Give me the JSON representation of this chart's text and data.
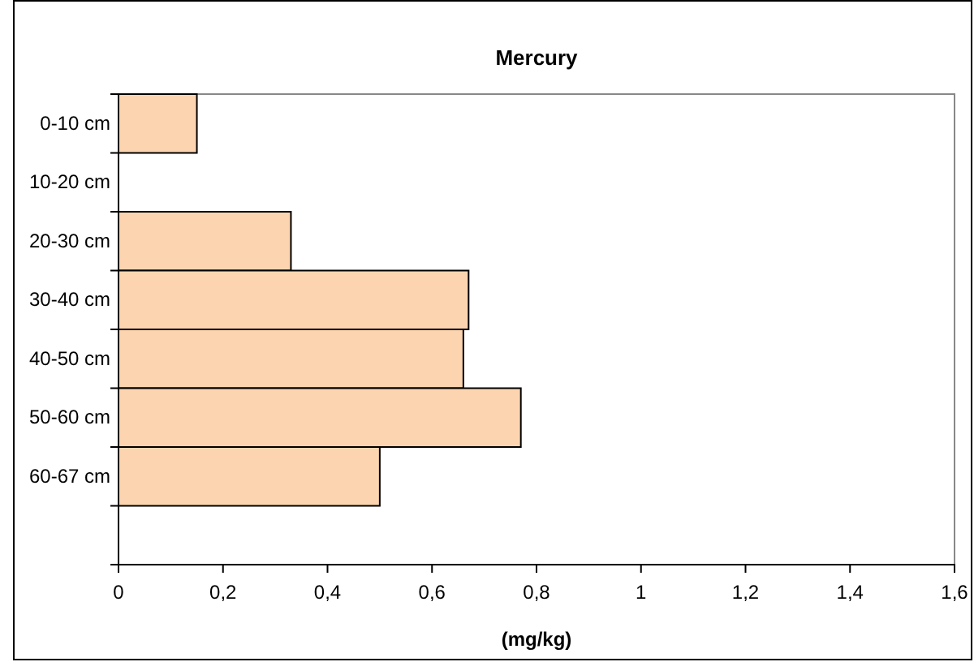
{
  "chart_data": {
    "type": "bar",
    "orientation": "horizontal",
    "title": "Mercury",
    "xlabel": "(mg/kg)",
    "categories": [
      "0-10 cm",
      "10-20 cm",
      "20-30 cm",
      "30-40 cm",
      "40-50 cm",
      "50-60 cm",
      "60-67 cm",
      null
    ],
    "values": [
      0.15,
      null,
      0.33,
      0.67,
      0.66,
      0.77,
      0.5,
      null
    ],
    "color": "#fcd5b0",
    "xlim": [
      0,
      1.6
    ],
    "xticks": [
      0,
      {
        "value": 0.2,
        "label": "0,2"
      },
      {
        "value": 0.4,
        "label": "0,4"
      },
      {
        "value": 0.6,
        "label": "0,6"
      },
      {
        "value": 0.8,
        "label": "0,8"
      },
      1,
      {
        "value": 1.2,
        "label": "1,2"
      },
      {
        "value": 1.4,
        "label": "1,4"
      },
      {
        "value": 1.6,
        "label": "1,6"
      }
    ],
    "grid": false
  }
}
